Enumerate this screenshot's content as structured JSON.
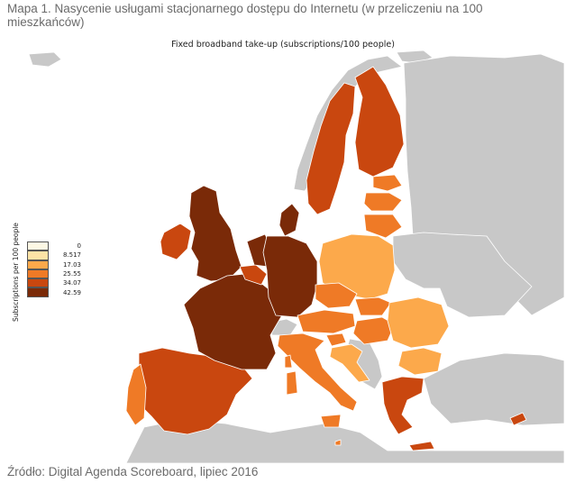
{
  "caption": "Mapa 1. Nasycenie usługami stacjonarnego dostępu do Internetu (w przeliczeniu na 100 mieszkańców)",
  "map_title": "Fixed broadband take-up (subscriptions/100 people)",
  "legend": {
    "axis_label": "Subscriptions per 100 people",
    "items": [
      {
        "label": "0",
        "color": "#fdf8e4"
      },
      {
        "label": "8.517",
        "color": "#fde3a6"
      },
      {
        "label": "17.03",
        "color": "#fca94b"
      },
      {
        "label": "25.55",
        "color": "#ef7a26"
      },
      {
        "label": "34.07",
        "color": "#c9470f"
      },
      {
        "label": "42.59",
        "color": "#7a2a08"
      }
    ]
  },
  "colors": {
    "non_eu": "#c8c8c8",
    "sea": "#ffffff",
    "level_17": "#fca94b",
    "level_25": "#ef7a26",
    "level_34": "#c9470f",
    "level_42": "#7a2a08"
  },
  "source": "Źródło: Digital Agenda Scoreboard, lipiec 2016"
}
